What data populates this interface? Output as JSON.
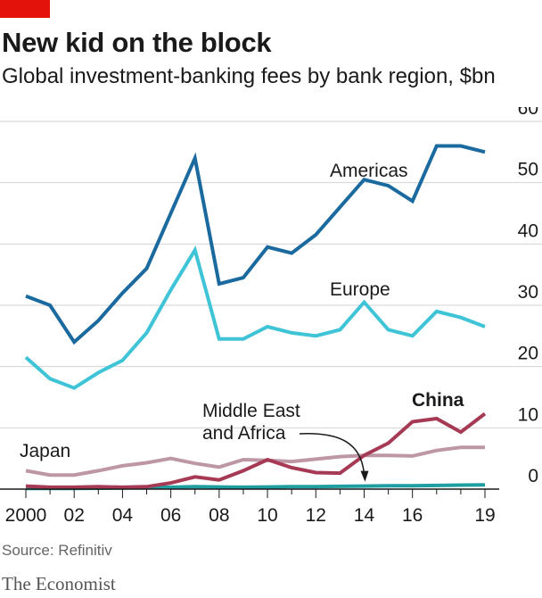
{
  "header": {
    "title": "New kid on the block",
    "subtitle": "Global investment-banking fees by bank region, $bn"
  },
  "footer": {
    "source": "Source: Refinitiv",
    "brand": "The Economist"
  },
  "colors": {
    "accent_red": "#e3120b",
    "americas": "#1a6aa0",
    "europe": "#3ec4d6",
    "china": "#a63a55",
    "japan": "#bd97a4",
    "mea": "#1e9ea0",
    "grid": "#d2d2d2"
  },
  "chart_data": {
    "type": "line",
    "x": [
      2000,
      2001,
      2002,
      2003,
      2004,
      2005,
      2006,
      2007,
      2008,
      2009,
      2010,
      2011,
      2012,
      2013,
      2014,
      2015,
      2016,
      2017,
      2018,
      2019
    ],
    "x_tick_labels": [
      "2000",
      "02",
      "04",
      "06",
      "08",
      "10",
      "12",
      "14",
      "16",
      "19"
    ],
    "x_tick_values": [
      2000,
      2002,
      2004,
      2006,
      2008,
      2010,
      2012,
      2014,
      2016,
      2019
    ],
    "y_tick_labels": [
      "0",
      "10",
      "20",
      "30",
      "40",
      "50",
      "60"
    ],
    "y_tick_values": [
      0,
      10,
      20,
      30,
      40,
      50,
      60
    ],
    "ylim": [
      0,
      60
    ],
    "y_axis_side": "right",
    "grid": true,
    "series": [
      {
        "name": "Americas",
        "color": "#1a6aa0",
        "values": [
          31.5,
          30,
          24,
          27.5,
          32,
          36,
          45,
          54,
          33.5,
          34.5,
          39.5,
          38.5,
          41.5,
          46,
          50.5,
          49.5,
          47,
          56,
          56,
          55
        ]
      },
      {
        "name": "Europe",
        "color": "#3ec4d6",
        "values": [
          21.5,
          18,
          16.5,
          19,
          21,
          25.5,
          32.5,
          39,
          24.5,
          24.5,
          26.5,
          25.5,
          25,
          26,
          30.5,
          26,
          25,
          29,
          28,
          26.5
        ]
      },
      {
        "name": "China",
        "color": "#a63a55",
        "values": [
          0.5,
          0.3,
          0.3,
          0.4,
          0.3,
          0.4,
          1,
          2,
          1.5,
          3,
          4.8,
          3.5,
          2.7,
          2.6,
          5.5,
          7.5,
          11,
          11.5,
          9.3,
          12.3
        ]
      },
      {
        "name": "Japan",
        "color": "#bd97a4",
        "values": [
          3,
          2.3,
          2.3,
          3,
          3.8,
          4.3,
          5,
          4.2,
          3.6,
          4.8,
          4.7,
          4.5,
          4.9,
          5.3,
          5.5,
          5.5,
          5.4,
          6.3,
          6.8,
          6.8
        ]
      },
      {
        "name": "Middle East and Africa",
        "color": "#1e9ea0",
        "values": [
          0.1,
          0.1,
          0.1,
          0.15,
          0.2,
          0.25,
          0.3,
          0.4,
          0.35,
          0.3,
          0.35,
          0.4,
          0.4,
          0.45,
          0.5,
          0.55,
          0.55,
          0.6,
          0.65,
          0.7
        ]
      }
    ],
    "annotations": [
      {
        "text": "Americas",
        "series": "Americas"
      },
      {
        "text": "Europe",
        "series": "Europe"
      },
      {
        "text": "China",
        "series": "China",
        "bold": true
      },
      {
        "text": "Japan",
        "series": "Japan"
      },
      {
        "lines": [
          "Middle East",
          "and Africa"
        ],
        "series": "Middle East and Africa",
        "arrow_to_year": 2014
      }
    ]
  }
}
